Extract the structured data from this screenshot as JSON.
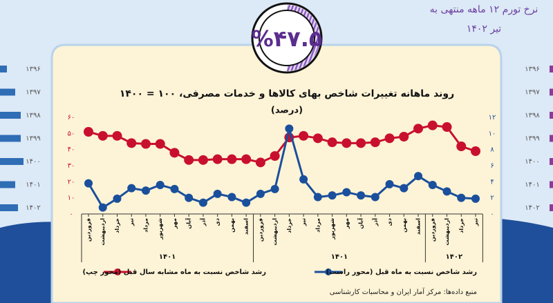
{
  "header": {
    "inflation_label": [
      "نرخ تورم ۱۲ ماهه منتهی به",
      "تیر ۱۴۰۲"
    ],
    "inflation_value": "%۴۷.۵"
  },
  "side_years": [
    "۱۳۹۶",
    "۱۳۹۷",
    "۱۳۹۸",
    "۱۳۹۹",
    "۱۴۰۰",
    "۱۴۰۱",
    "۱۴۰۲"
  ],
  "source": "منبع داده‌ها: مرکز آمار ایران و محاسبات کارشناسی",
  "chart_data": {
    "type": "line",
    "title": "روند ماهانه تغییرات شاخص بهای کالاها و خدمات مصرفی، ۱۰۰ = ۱۴۰۰",
    "subtitle": "(درصد)",
    "categories": [
      "فروردین",
      "اردیبهشت",
      "خرداد",
      "تیر",
      "مرداد",
      "شهریور",
      "مهر",
      "آبان",
      "آذر",
      "دی",
      "بهمن",
      "اسفند",
      "فروردین",
      "اردیبهشت",
      "خرداد",
      "تیر",
      "مرداد",
      "شهریور",
      "مهر",
      "آبان",
      "آذر",
      "دی",
      "بهمن",
      "اسفند",
      "فروردین",
      "اردیبهشت",
      "خرداد",
      "تیر"
    ],
    "category_groups": [
      "۱۴۰۱",
      "۱۴۰۱",
      "۱۴۰۲"
    ],
    "series": [
      {
        "name": "رشد شاخص نسبت به ماه مشابه سال قبل (محور چپ)",
        "color": "#c8102e",
        "axis": "y",
        "values": [
          51,
          48.5,
          48.5,
          44,
          43.5,
          43.5,
          38,
          33.5,
          33.5,
          34,
          34,
          34,
          32,
          36,
          47.5,
          48.5,
          47,
          44.5,
          44,
          44,
          44.5,
          47,
          48,
          53,
          55,
          54,
          42,
          39
        ]
      },
      {
        "name": "رشد شاخص نسبت به ماه قبل (محور راست)",
        "color": "#1a4f9c",
        "axis": "y2",
        "values": [
          3.8,
          0.8,
          1.9,
          3.2,
          2.9,
          3.6,
          3.1,
          2,
          1.4,
          2.5,
          2.1,
          1.4,
          2.5,
          3.1,
          10.6,
          4.3,
          2.1,
          2.3,
          2.7,
          2.3,
          2.1,
          3.7,
          3.2,
          4.7,
          3.6,
          2.8,
          2,
          1.9
        ]
      }
    ],
    "ylim": [
      0,
      60
    ],
    "yticks": [
      {
        "value": 0,
        "label": "۰"
      },
      {
        "value": 10,
        "label": "۱۰"
      },
      {
        "value": 20,
        "label": "۲۰"
      },
      {
        "value": 30,
        "label": "۳۰"
      },
      {
        "value": 40,
        "label": "۴۰"
      },
      {
        "value": 50,
        "label": "۵۰"
      },
      {
        "value": 60,
        "label": "۶۰"
      }
    ],
    "y2lim": [
      0,
      12
    ],
    "y2ticks": [
      {
        "value": 0,
        "label": "۰"
      },
      {
        "value": 2,
        "label": "۲"
      },
      {
        "value": 4,
        "label": "۴"
      },
      {
        "value": 6,
        "label": "۶"
      },
      {
        "value": 8,
        "label": "۸"
      },
      {
        "value": 10,
        "label": "۱۰"
      },
      {
        "value": 12,
        "label": "۱۲"
      }
    ]
  }
}
